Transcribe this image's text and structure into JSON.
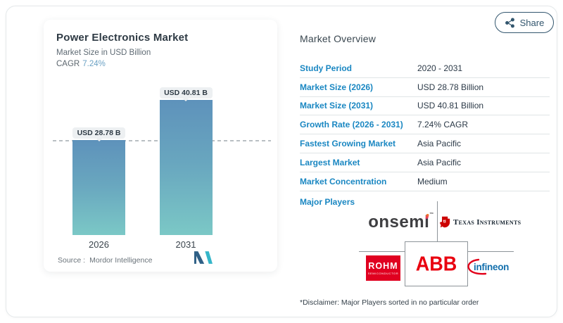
{
  "header": {
    "share_label": "Share"
  },
  "chart_panel": {
    "title": "Power Electronics Market",
    "subtitle": "Market Size in USD Billion",
    "cagr_label": "CAGR",
    "cagr_value": "7.24%",
    "source_label": "Source :",
    "source_name": "Mordor Intelligence"
  },
  "chart_data": {
    "type": "bar",
    "title": "Power Electronics Market",
    "ylabel": "Market Size in USD Billion",
    "categories": [
      "2026",
      "2031"
    ],
    "values": [
      28.78,
      40.81
    ],
    "bar_labels": [
      "USD 28.78 B",
      "USD 40.81 B"
    ],
    "ylim": [
      0,
      45
    ],
    "grid": false,
    "legend": "none",
    "annotations": [
      "dashed horizontal reference line at 2026 value (28.78)"
    ]
  },
  "overview": {
    "title": "Market Overview",
    "rows": [
      {
        "label": "Study Period",
        "value": "2020 - 2031"
      },
      {
        "label": "Market Size (2026)",
        "value": "USD 28.78 Billion"
      },
      {
        "label": "Market Size (2031)",
        "value": "USD 40.81 Billion"
      },
      {
        "label": "Growth Rate (2026 - 2031)",
        "value": "7.24% CAGR"
      },
      {
        "label": "Fastest Growing Market",
        "value": "Asia Pacific"
      },
      {
        "label": "Largest Market",
        "value": "Asia Pacific"
      },
      {
        "label": "Market Concentration",
        "value": "Medium"
      }
    ],
    "major_players_label": "Major Players",
    "major_players": [
      "onsemi",
      "Texas Instruments",
      "ROHM",
      "ABB",
      "Infineon"
    ],
    "disclaimer": "*Disclaimer: Major Players sorted in no particular order"
  },
  "logos": {
    "onsemi_text": "onsemi",
    "onsemi_tm": "™",
    "ti_mark": "ti",
    "ti_text": "Texas Instruments",
    "rohm_text": "ROHM",
    "rohm_sub": "SEMICONDUCTOR",
    "abb_text": "ABB",
    "infineon_text": "infineon"
  },
  "colors": {
    "accent_blue": "#1a87c2",
    "bar_top": "#5e92bb",
    "bar_bottom": "#7bc8c6",
    "share_border": "#33566e",
    "abb_red": "#e9000f",
    "rohm_red": "#e00020",
    "ti_red": "#cc0000",
    "infineon_blue": "#1470ad"
  }
}
